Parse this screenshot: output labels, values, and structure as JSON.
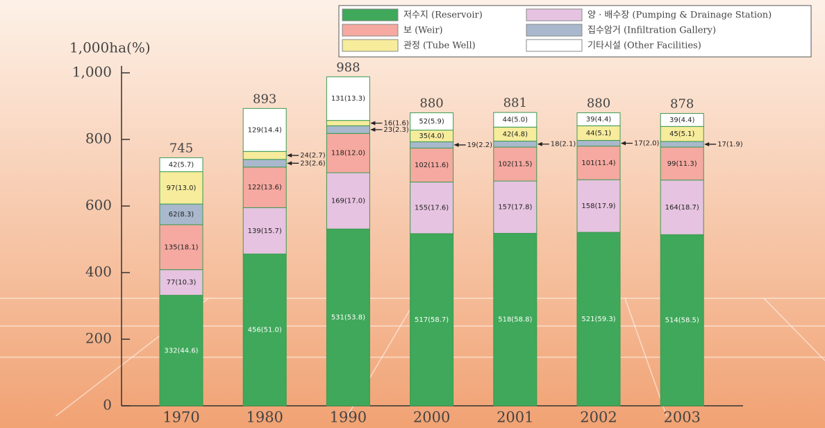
{
  "chart_data": {
    "type": "stacked_bar",
    "y_label": "1,000ha(%)",
    "categories": [
      "1970",
      "1980",
      "1990",
      "2000",
      "2001",
      "2002",
      "2003"
    ],
    "totals": [
      745,
      893,
      988,
      880,
      881,
      880,
      878
    ],
    "series": [
      {
        "name": "저수지 (Reservoir)",
        "color": "#3fa85a",
        "values": [
          332,
          456,
          531,
          517,
          518,
          521,
          514
        ],
        "value_labels": [
          "332(44.6)",
          "456(51.0)",
          "531(53.8)",
          "517(58.7)",
          "518(58.8)",
          "521(59.3)",
          "514(58.5)"
        ]
      },
      {
        "name": "양 · 배수장 (Pumping & Drainage Station)",
        "color": "#e6c3e0",
        "values": [
          77,
          139,
          169,
          155,
          157,
          158,
          164
        ],
        "value_labels": [
          "77(10.3)",
          "139(15.7)",
          "169(17.0)",
          "155(17.6)",
          "157(17.8)",
          "158(17.9)",
          "164(18.7)"
        ]
      },
      {
        "name": "보 (Weir)",
        "color": "#f5a9a0",
        "values": [
          135,
          122,
          118,
          102,
          102,
          101,
          99
        ],
        "value_labels": [
          "135(18.1)",
          "122(13.6)",
          "118(12.0)",
          "102(11.6)",
          "102(11.5)",
          "101(11.4)",
          "99(11.3)"
        ]
      },
      {
        "name": "집수암거 (Infiltration Gallery)",
        "color": "#a9b8cc",
        "values": [
          62,
          23,
          23,
          19,
          18,
          17,
          17
        ],
        "value_labels": [
          "62(8.3)",
          "23(2.6)",
          "23(2.3)",
          "19(2.2)",
          "18(2.1)",
          "17(2.0)",
          "17(1.9)"
        ]
      },
      {
        "name": "관정 (Tube Well)",
        "color": "#f6ec9c",
        "values": [
          97,
          24,
          16,
          35,
          42,
          44,
          45
        ],
        "value_labels": [
          "97(13.0)",
          "24(2.7)",
          "16(1.6)",
          "35(4.0)",
          "42(4.8)",
          "44(5.1)",
          "45(5.1)"
        ]
      },
      {
        "name": "기타시설 (Other Facilities)",
        "color": "#ffffff",
        "values": [
          42,
          129,
          131,
          52,
          44,
          39,
          39
        ],
        "value_labels": [
          "42(5.7)",
          "129(14.4)",
          "131(13.3)",
          "52(5.9)",
          "44(5.0)",
          "39(4.4)",
          "39(4.4)"
        ]
      }
    ],
    "ylim": [
      0,
      1000
    ],
    "yticks": [
      0,
      200,
      400,
      600,
      800,
      {
        "value": 1000,
        "label": "1,000"
      }
    ]
  }
}
